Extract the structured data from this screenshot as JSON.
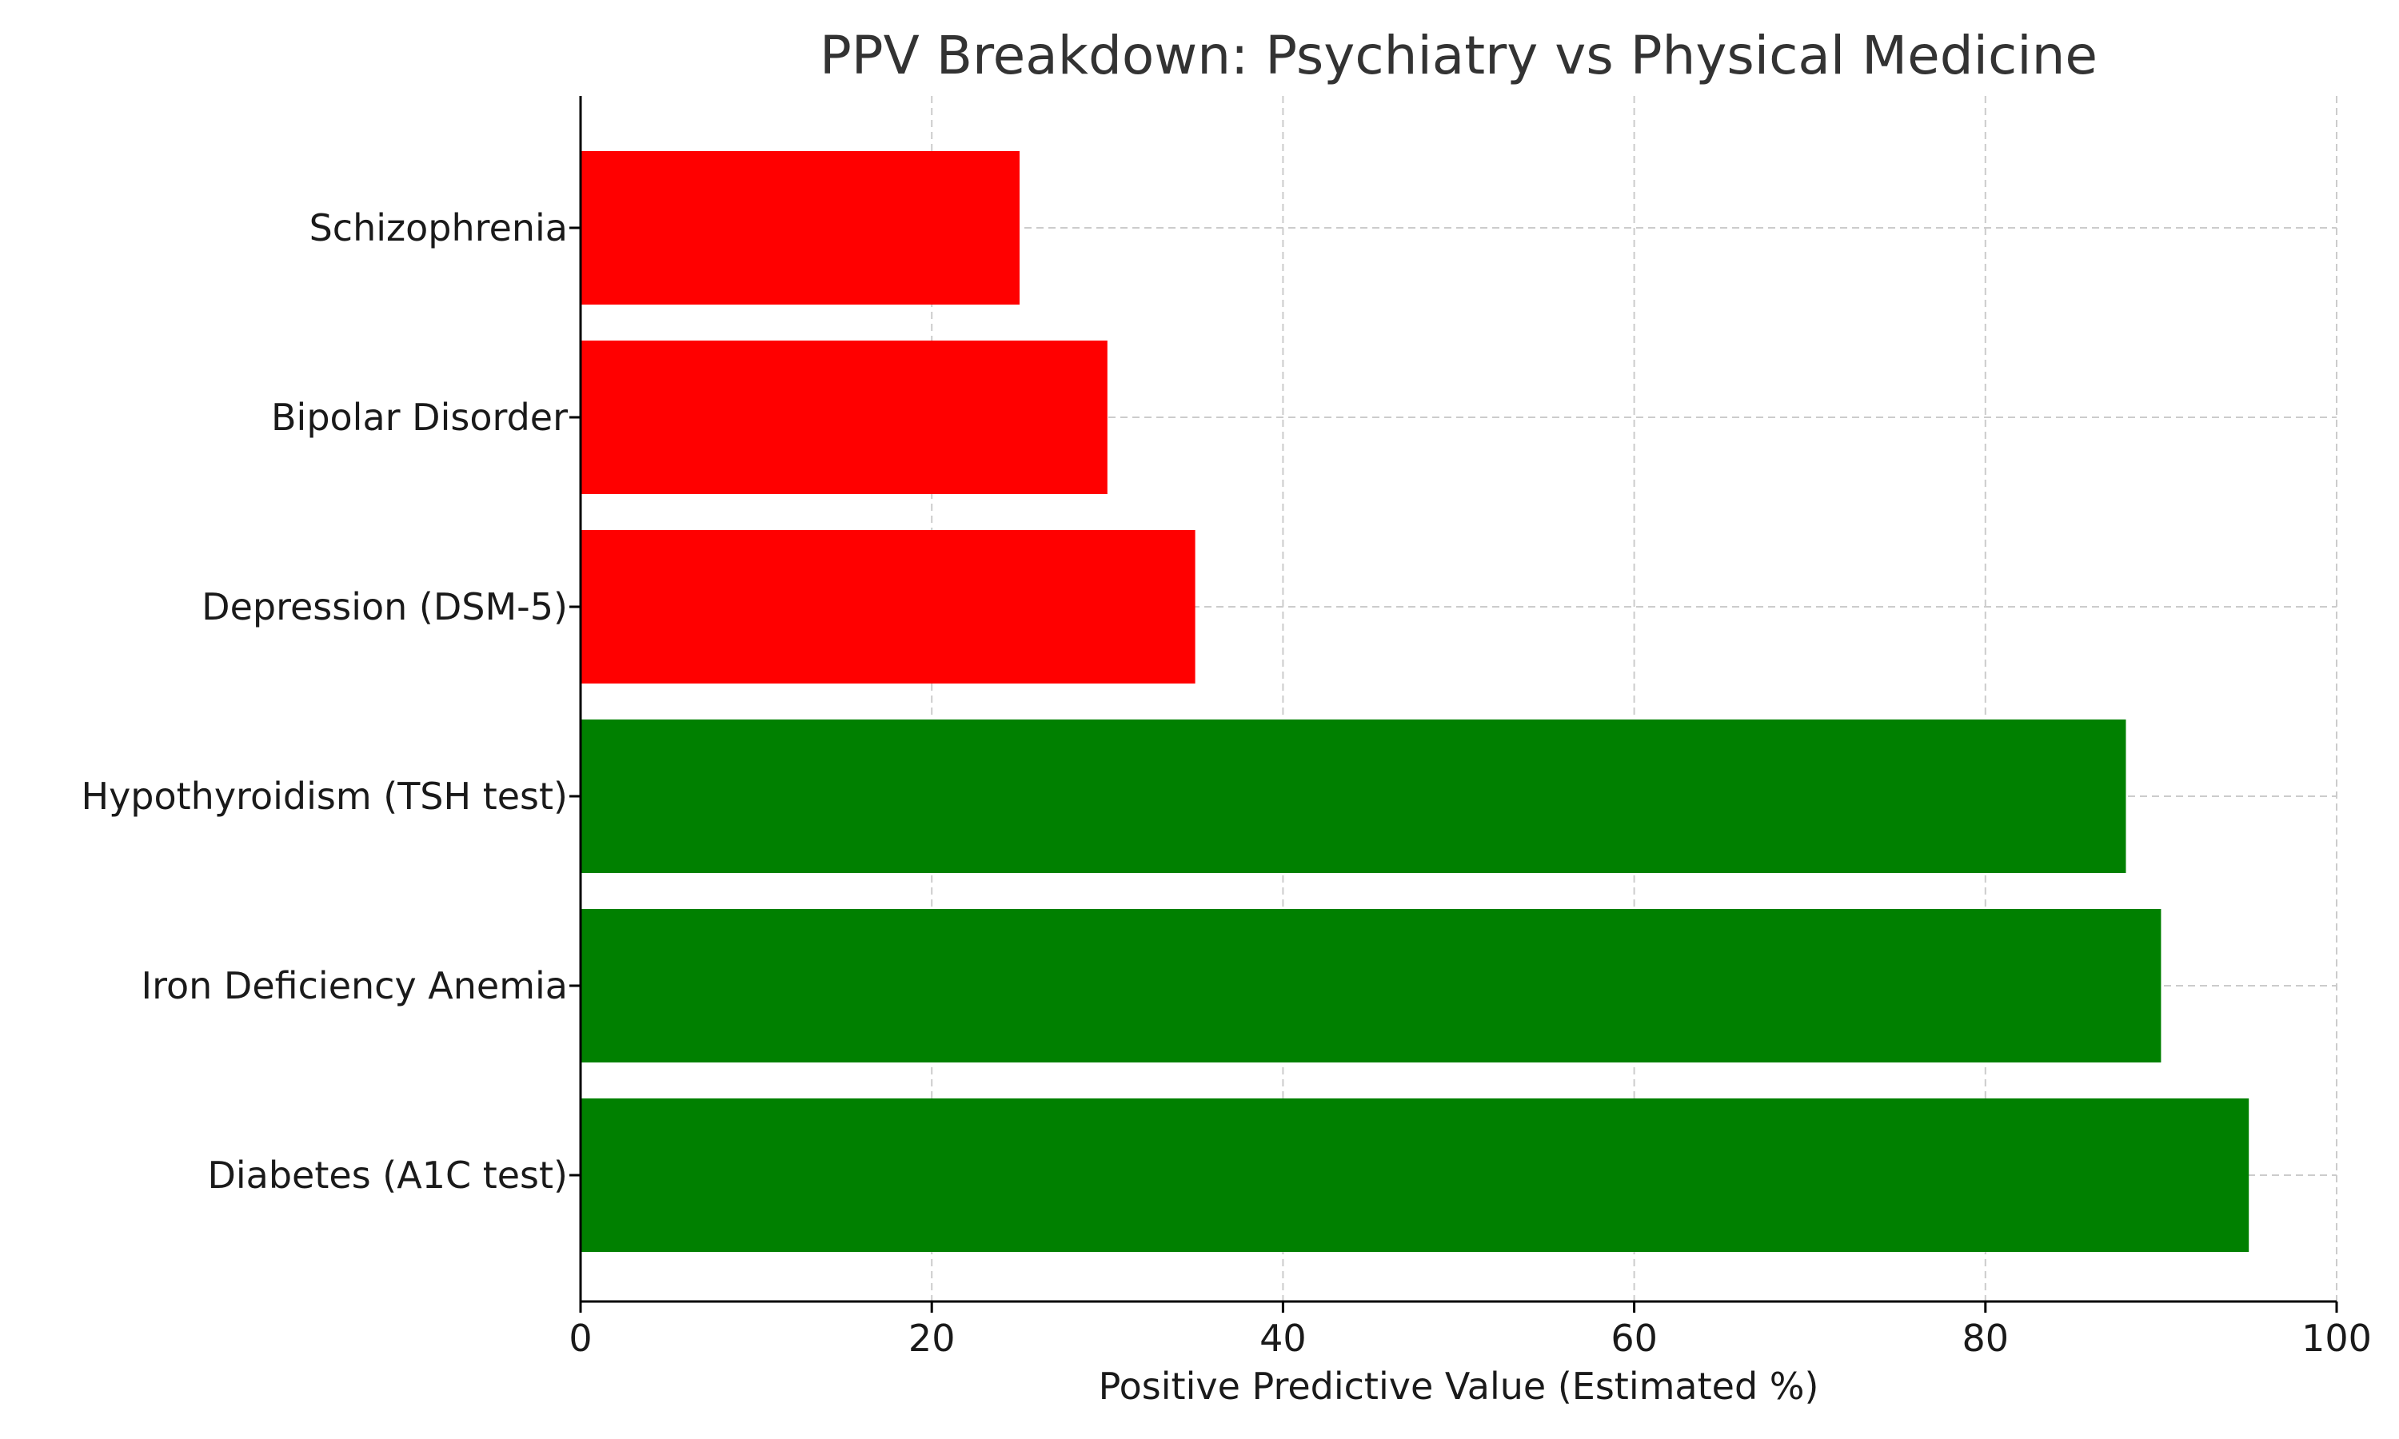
{
  "chart_data": {
    "type": "bar",
    "orientation": "horizontal",
    "title": "PPV Breakdown: Psychiatry vs Physical Medicine",
    "xlabel": "Positive Predictive Value (Estimated %)",
    "ylabel": "",
    "xlim": [
      0,
      100
    ],
    "xticks": [
      "0",
      "20",
      "40",
      "60",
      "80",
      "100"
    ],
    "grid": true,
    "categories": [
      "Diabetes (A1C test)",
      "Iron Deficiency Anemia",
      "Hypothyroidism (TSH test)",
      "Depression (DSM-5)",
      "Bipolar Disorder",
      "Schizophrenia"
    ],
    "values": [
      95,
      90,
      88,
      35,
      30,
      25
    ],
    "colors": [
      "#008000",
      "#008000",
      "#008000",
      "#ff0000",
      "#ff0000",
      "#ff0000"
    ]
  }
}
